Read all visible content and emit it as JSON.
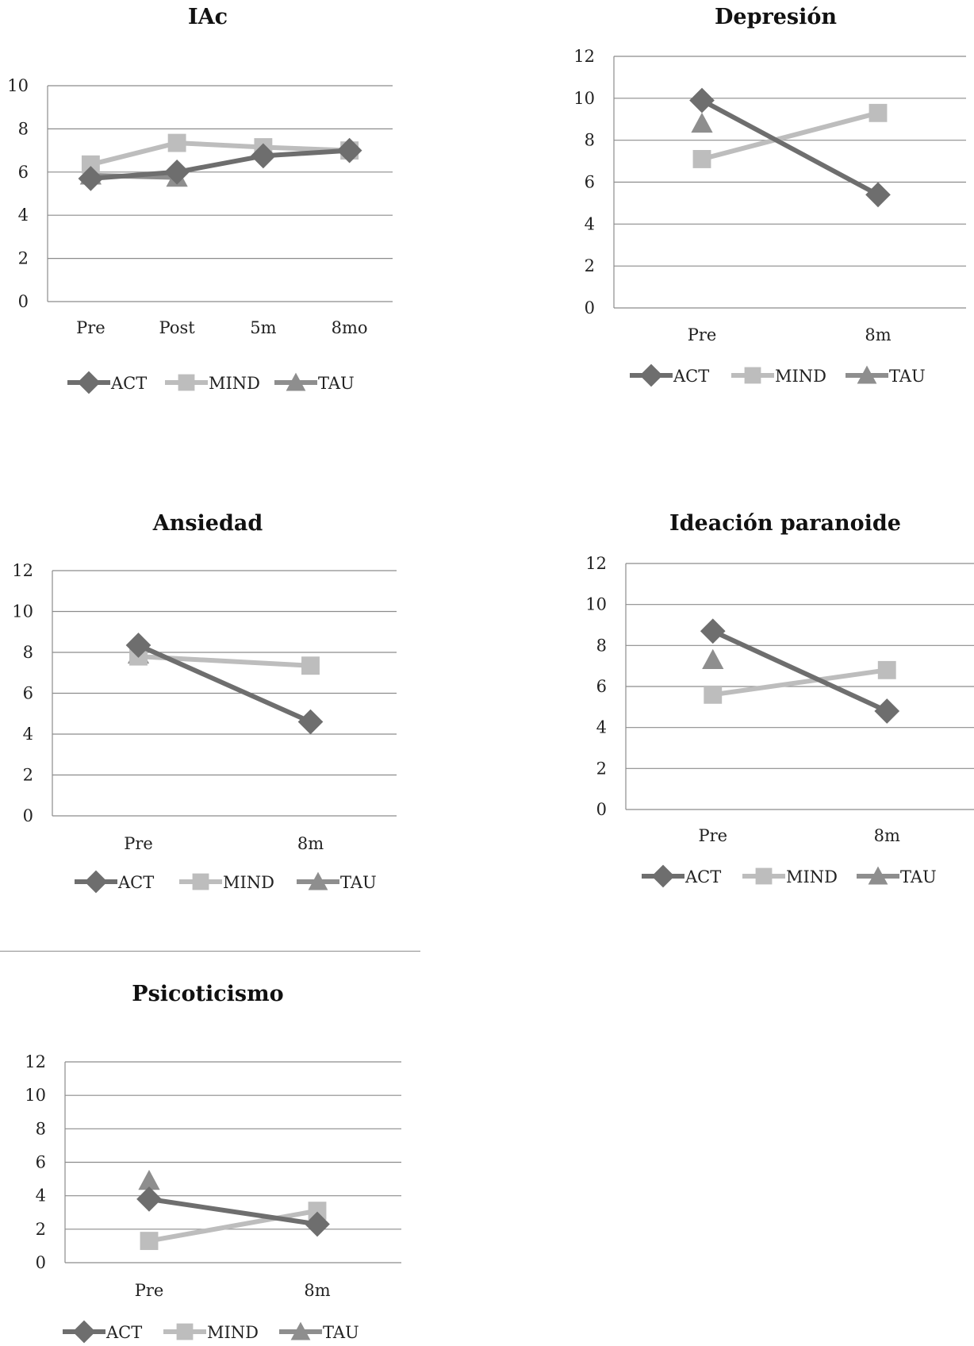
{
  "colors": {
    "ACT": "#6e6e6e",
    "MIND": "#bdbdbd",
    "TAU": "#8e8e8e"
  },
  "legend": [
    "ACT",
    "MIND",
    "TAU"
  ],
  "chart_data": [
    {
      "type": "line",
      "title": "IAc",
      "categories": [
        "Pre",
        "Post",
        "5m",
        "8mo"
      ],
      "ylim": [
        0,
        10
      ],
      "yticks": [
        0,
        2,
        4,
        6,
        8,
        10
      ],
      "grid": true,
      "legend_position": "bottom",
      "series": [
        {
          "name": "ACT",
          "marker": "diamond",
          "values": [
            5.7,
            6.0,
            6.75,
            7.0
          ]
        },
        {
          "name": "MIND",
          "marker": "square",
          "values": [
            6.35,
            7.35,
            7.15,
            7.0
          ]
        },
        {
          "name": "TAU",
          "marker": "triangle",
          "values": [
            5.85,
            5.75,
            null,
            null
          ]
        }
      ]
    },
    {
      "type": "line",
      "title": "Depresión",
      "categories": [
        "Pre",
        "8m"
      ],
      "ylim": [
        0,
        12
      ],
      "yticks": [
        0,
        2,
        4,
        6,
        8,
        10,
        12
      ],
      "grid": true,
      "legend_position": "bottom",
      "series": [
        {
          "name": "ACT",
          "marker": "diamond",
          "values": [
            9.9,
            5.4
          ]
        },
        {
          "name": "MIND",
          "marker": "square",
          "values": [
            7.1,
            9.3
          ]
        },
        {
          "name": "TAU",
          "marker": "triangle",
          "values": [
            8.8,
            null
          ]
        }
      ]
    },
    {
      "type": "line",
      "title": "Ansiedad",
      "categories": [
        "Pre",
        "8m"
      ],
      "ylim": [
        0,
        12
      ],
      "yticks": [
        0,
        2,
        4,
        6,
        8,
        10,
        12
      ],
      "grid": true,
      "legend_position": "bottom",
      "series": [
        {
          "name": "ACT",
          "marker": "diamond",
          "values": [
            8.35,
            4.6
          ]
        },
        {
          "name": "MIND",
          "marker": "square",
          "values": [
            7.8,
            7.35
          ]
        },
        {
          "name": "TAU",
          "marker": "triangle",
          "values": [
            7.9,
            null
          ]
        }
      ]
    },
    {
      "type": "line",
      "title": "Ideación paranoide",
      "categories": [
        "Pre",
        "8m"
      ],
      "ylim": [
        0,
        12
      ],
      "yticks": [
        0,
        2,
        4,
        6,
        8,
        10,
        12
      ],
      "grid": true,
      "legend_position": "bottom",
      "series": [
        {
          "name": "ACT",
          "marker": "diamond",
          "values": [
            8.7,
            4.8
          ]
        },
        {
          "name": "MIND",
          "marker": "square",
          "values": [
            5.6,
            6.8
          ]
        },
        {
          "name": "TAU",
          "marker": "triangle",
          "values": [
            7.3,
            null
          ]
        }
      ]
    },
    {
      "type": "line",
      "title": "Psicoticismo",
      "categories": [
        "Pre",
        "8m"
      ],
      "ylim": [
        0,
        12
      ],
      "yticks": [
        0,
        2,
        4,
        6,
        8,
        10,
        12
      ],
      "grid": true,
      "legend_position": "bottom",
      "series": [
        {
          "name": "ACT",
          "marker": "diamond",
          "values": [
            3.8,
            2.3
          ]
        },
        {
          "name": "MIND",
          "marker": "square",
          "values": [
            1.3,
            3.1
          ]
        },
        {
          "name": "TAU",
          "marker": "triangle",
          "values": [
            4.9,
            null
          ]
        }
      ]
    }
  ]
}
